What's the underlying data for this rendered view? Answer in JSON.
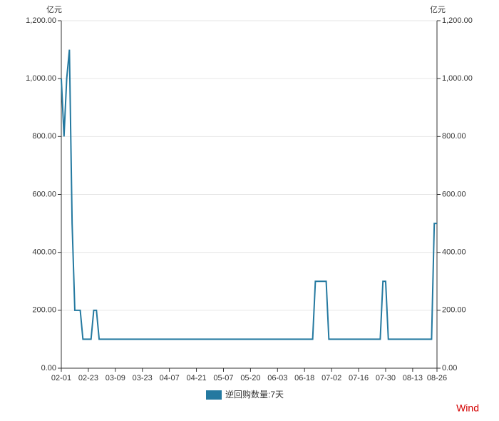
{
  "chart_data": {
    "type": "line",
    "y_unit": "亿元",
    "y2_unit": "亿元",
    "watermark": "Wind",
    "categories": [
      "02-01",
      null,
      null,
      null,
      null,
      null,
      null,
      null,
      null,
      null,
      "02-23",
      null,
      null,
      null,
      null,
      null,
      null,
      null,
      null,
      null,
      "03-09",
      null,
      null,
      null,
      null,
      null,
      null,
      null,
      null,
      null,
      "03-23",
      null,
      null,
      null,
      null,
      null,
      null,
      null,
      null,
      null,
      "04-07",
      null,
      null,
      null,
      null,
      null,
      null,
      null,
      null,
      null,
      "04-21",
      null,
      null,
      null,
      null,
      null,
      null,
      null,
      null,
      null,
      "05-07",
      null,
      null,
      null,
      null,
      null,
      null,
      null,
      null,
      null,
      "05-20",
      null,
      null,
      null,
      null,
      null,
      null,
      null,
      null,
      null,
      "06-03",
      null,
      null,
      null,
      null,
      null,
      null,
      null,
      null,
      null,
      "06-18",
      null,
      null,
      null,
      null,
      null,
      null,
      null,
      null,
      null,
      "07-02",
      null,
      null,
      null,
      null,
      null,
      null,
      null,
      null,
      null,
      "07-16",
      null,
      null,
      null,
      null,
      null,
      null,
      null,
      null,
      null,
      "07-30",
      null,
      null,
      null,
      null,
      null,
      null,
      null,
      null,
      null,
      "08-13",
      null,
      null,
      null,
      null,
      null,
      null,
      null,
      null,
      "08-26"
    ],
    "series": [
      {
        "name": "逆回购数量:7天",
        "color": "#2479a0",
        "values": [
          1000,
          800,
          1000,
          1100,
          500,
          200,
          200,
          200,
          100,
          100,
          100,
          100,
          200,
          200,
          100,
          100,
          100,
          100,
          100,
          100,
          100,
          100,
          100,
          100,
          100,
          100,
          100,
          100,
          100,
          100,
          100,
          100,
          100,
          100,
          100,
          100,
          100,
          100,
          100,
          100,
          100,
          100,
          100,
          100,
          100,
          100,
          100,
          100,
          100,
          100,
          100,
          100,
          100,
          100,
          100,
          100,
          100,
          100,
          100,
          100,
          100,
          100,
          100,
          100,
          100,
          100,
          100,
          100,
          100,
          100,
          100,
          100,
          100,
          100,
          100,
          100,
          100,
          100,
          100,
          100,
          100,
          100,
          100,
          100,
          100,
          100,
          100,
          100,
          100,
          100,
          100,
          100,
          100,
          100,
          300,
          300,
          300,
          300,
          300,
          100,
          100,
          100,
          100,
          100,
          100,
          100,
          100,
          100,
          100,
          100,
          100,
          100,
          100,
          100,
          100,
          100,
          100,
          100,
          100,
          300,
          300,
          100,
          100,
          100,
          100,
          100,
          100,
          100,
          100,
          100,
          100,
          100,
          100,
          100,
          100,
          100,
          100,
          100,
          500,
          500
        ]
      }
    ],
    "ylim": [
      0,
      1200
    ],
    "yticks": [
      {
        "value": 0,
        "label": "0.00"
      },
      {
        "value": 200,
        "label": "200.00"
      },
      {
        "value": 400,
        "label": "400.00"
      },
      {
        "value": 600,
        "label": "600.00"
      },
      {
        "value": 800,
        "label": "800.00"
      },
      {
        "value": 1000,
        "label": "1,000.00"
      },
      {
        "value": 1200,
        "label": "1,200.00"
      }
    ],
    "y2lim": [
      0,
      1200
    ],
    "y2ticks": [
      {
        "value": 0,
        "label": "0.00"
      },
      {
        "value": 200,
        "label": "200.00"
      },
      {
        "value": 400,
        "label": "400.00"
      },
      {
        "value": 600,
        "label": "600.00"
      },
      {
        "value": 800,
        "label": "800.00"
      },
      {
        "value": 1000,
        "label": "1,000.00"
      },
      {
        "value": 1200,
        "label": "1,200.00"
      }
    ],
    "grid": true
  }
}
